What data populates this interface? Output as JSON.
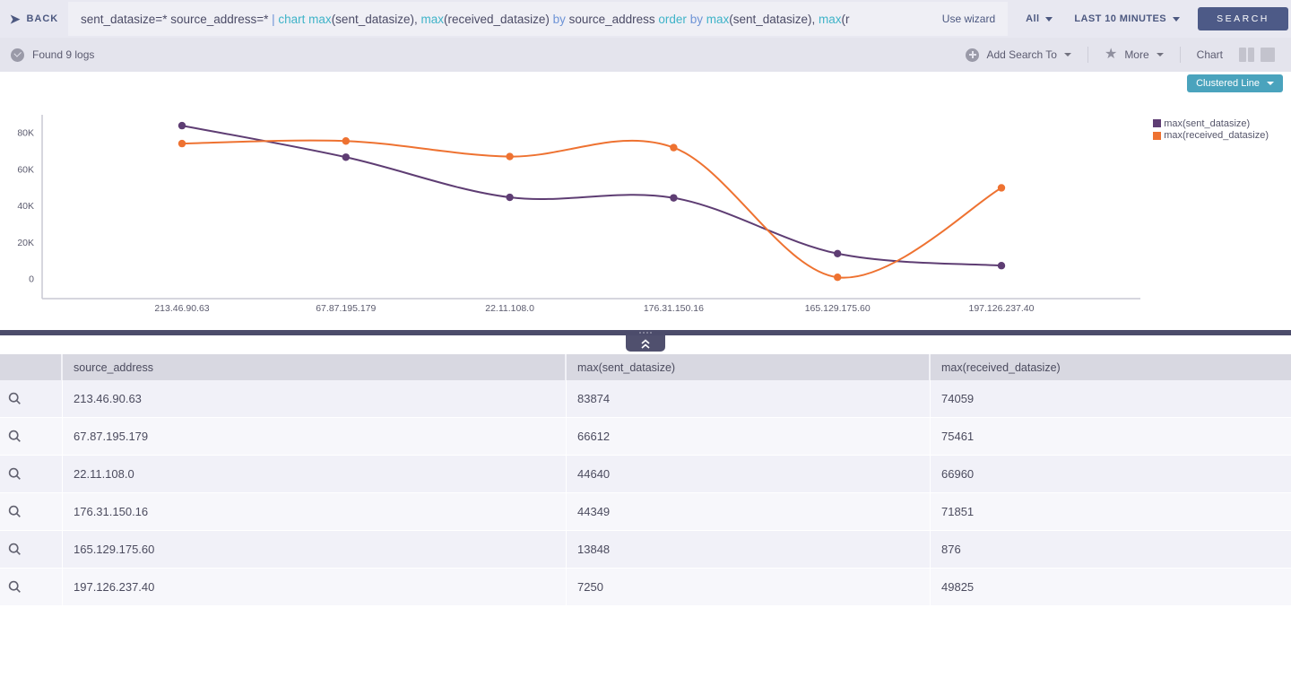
{
  "header": {
    "back_label": "BACK",
    "query_tokens": [
      {
        "text": "sent_datasize=* source_address=* ",
        "type": "plain"
      },
      {
        "text": "| ",
        "type": "operator"
      },
      {
        "text": "chart ",
        "type": "keyword"
      },
      {
        "text": "max",
        "type": "keyword"
      },
      {
        "text": "(sent_datasize), ",
        "type": "plain"
      },
      {
        "text": "max",
        "type": "keyword"
      },
      {
        "text": "(received_datasize) ",
        "type": "plain"
      },
      {
        "text": "by ",
        "type": "operator"
      },
      {
        "text": "source_address ",
        "type": "plain"
      },
      {
        "text": "order ",
        "type": "keyword"
      },
      {
        "text": "by ",
        "type": "operator"
      },
      {
        "text": "max",
        "type": "keyword"
      },
      {
        "text": "(sent_datasize), ",
        "type": "plain"
      },
      {
        "text": "max",
        "type": "keyword"
      },
      {
        "text": "(r",
        "type": "plain"
      }
    ],
    "use_wizard_label": "Use wizard",
    "scope_dropdown_value": "All",
    "time_range_value": "LAST 10 MINUTES",
    "search_button_label": "SEARCH"
  },
  "toolbar": {
    "status_text": "Found 9 logs",
    "add_search_to_label": "Add Search To",
    "more_label": "More",
    "chart_label": "Chart"
  },
  "chart": {
    "type_button_label": "Clustered Line",
    "accent_color": "#4aa3bd"
  },
  "chart_data": {
    "type": "line",
    "title": "",
    "xlabel": "source_address",
    "ylabel": "",
    "categories": [
      "213.46.90.63",
      "67.87.195.179",
      "22.11.108.0",
      "176.31.150.16",
      "165.129.175.60",
      "197.126.237.40"
    ],
    "series": [
      {
        "name": "max(sent_datasize)",
        "color": "#5e3d73",
        "values": [
          83874,
          66612,
          44640,
          44349,
          13848,
          7250
        ]
      },
      {
        "name": "max(received_datasize)",
        "color": "#ee7231",
        "values": [
          74059,
          75461,
          66960,
          71851,
          876,
          49825
        ]
      }
    ],
    "y_ticks": [
      {
        "value": 0,
        "label": "0"
      },
      {
        "value": 20000,
        "label": "20K"
      },
      {
        "value": 40000,
        "label": "40K"
      },
      {
        "value": 60000,
        "label": "60K"
      },
      {
        "value": 80000,
        "label": "80K"
      }
    ],
    "ylim": [
      0,
      90000
    ],
    "grid": false,
    "legend_position": "right",
    "marker": "circle"
  },
  "table": {
    "columns": [
      "source_address",
      "max(sent_datasize)",
      "max(received_datasize)"
    ],
    "rows": [
      {
        "source_address": "213.46.90.63",
        "sent": "83874",
        "received": "74059"
      },
      {
        "source_address": "67.87.195.179",
        "sent": "66612",
        "received": "75461"
      },
      {
        "source_address": "22.11.108.0",
        "sent": "44640",
        "received": "66960"
      },
      {
        "source_address": "176.31.150.16",
        "sent": "44349",
        "received": "71851"
      },
      {
        "source_address": "165.129.175.60",
        "sent": "13848",
        "received": "876"
      },
      {
        "source_address": "197.126.237.40",
        "sent": "7250",
        "received": "49825"
      }
    ]
  }
}
